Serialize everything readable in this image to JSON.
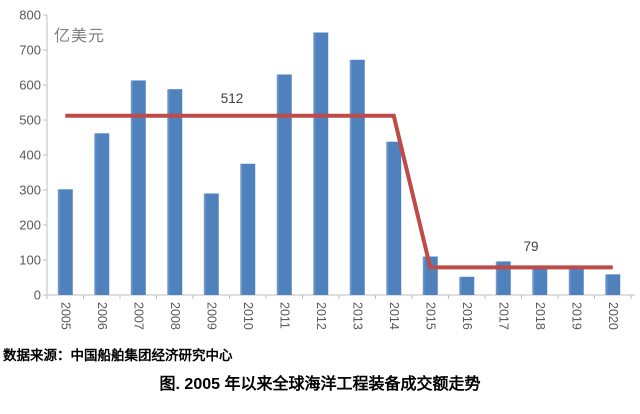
{
  "figure": {
    "unit_label": "亿美元",
    "source": "数据来源：中国船舶集团经济研究中心",
    "caption": "图. 2005 年以来全球海洋工程装备成交额走势"
  },
  "colors": {
    "bar": "#4F81BD",
    "bar_edge_light": "#7FA1CD",
    "line": "#BE4B48",
    "axis": "#BFBFBF",
    "tick_label": "#595959",
    "annotation": "#404040"
  },
  "chart_data": {
    "type": "bar",
    "title": "图. 2005 年以来全球海洋工程装备成交额走势",
    "ylabel": "亿美元",
    "categories": [
      "2005",
      "2006",
      "2007",
      "2008",
      "2009",
      "2010",
      "2011",
      "2012",
      "2013",
      "2014",
      "2015",
      "2016",
      "2017",
      "2018",
      "2019",
      "2020"
    ],
    "series": [
      {
        "name": "全球海洋工程装备成交额",
        "type": "bar",
        "values": [
          302,
          462,
          613,
          588,
          290,
          375,
          630,
          750,
          672,
          438,
          110,
          52,
          96,
          79,
          78,
          59
        ]
      },
      {
        "name": "阶段均值线",
        "type": "line",
        "values": [
          512,
          512,
          512,
          512,
          512,
          512,
          512,
          512,
          512,
          512,
          79,
          79,
          79,
          79,
          79,
          79
        ]
      }
    ],
    "annotations": [
      {
        "text": "512",
        "x": 232,
        "y": 103
      },
      {
        "text": "79",
        "x": 531,
        "y": 251
      }
    ],
    "ylim": [
      0,
      800
    ],
    "ytick_step": 100,
    "grid": false,
    "legend": "none",
    "source": "数据来源：中国船舶集团经济研究中心"
  }
}
